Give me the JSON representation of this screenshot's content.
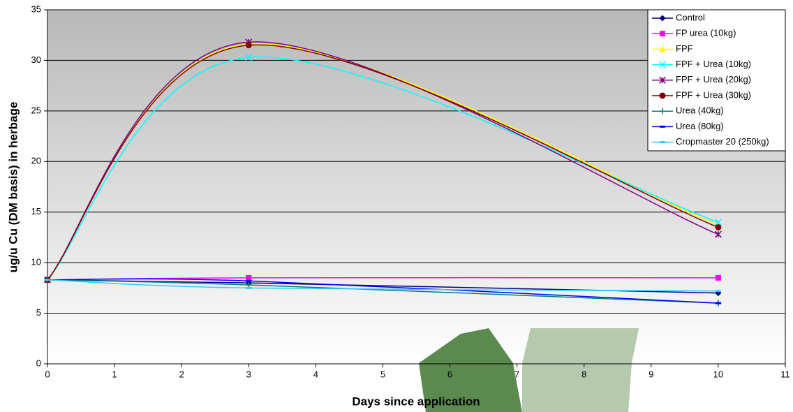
{
  "chart_data": {
    "type": "line",
    "x_label": "Days since application",
    "y_label": "ug/u Cu (DM basis) in herbage",
    "x": [
      0,
      3,
      10
    ],
    "xlim": [
      0,
      11
    ],
    "xticks": [
      0,
      1,
      2,
      3,
      4,
      5,
      6,
      7,
      8,
      9,
      10,
      11
    ],
    "ylim": [
      0,
      35
    ],
    "yticks": [
      0,
      5,
      10,
      15,
      20,
      25,
      30,
      35
    ],
    "grid": true,
    "smooth": true,
    "legend": "top-right",
    "series": [
      {
        "name": "Control",
        "color": "#000080",
        "marker": "diamond",
        "values": [
          8.3,
          8.0,
          7.0
        ]
      },
      {
        "name": "FP urea (10kg)",
        "color": "#ff00ff",
        "marker": "square",
        "values": [
          8.3,
          8.5,
          8.5
        ]
      },
      {
        "name": "FPF",
        "color": "#ffff00",
        "marker": "triangle",
        "values": [
          8.3,
          31.6,
          13.7
        ]
      },
      {
        "name": "FPF + Urea (10kg)",
        "color": "#00ffff",
        "marker": "x",
        "values": [
          8.3,
          30.3,
          14.0
        ]
      },
      {
        "name": "FPF + Urea (20kg)",
        "color": "#800080",
        "marker": "star",
        "values": [
          8.3,
          31.8,
          12.8
        ]
      },
      {
        "name": "FPF + Urea (30kg)",
        "color": "#800000",
        "marker": "circle",
        "values": [
          8.3,
          31.5,
          13.5
        ]
      },
      {
        "name": "Urea (40kg)",
        "color": "#008080",
        "marker": "plus",
        "values": [
          8.3,
          7.8,
          6.0
        ]
      },
      {
        "name": "Urea (80kg)",
        "color": "#0000ff",
        "marker": "dash",
        "values": [
          8.3,
          8.2,
          6.0
        ]
      },
      {
        "name": "Cropmaster 20 (250kg)",
        "color": "#33ccff",
        "marker": "dash",
        "values": [
          8.3,
          7.5,
          7.2
        ]
      }
    ]
  }
}
